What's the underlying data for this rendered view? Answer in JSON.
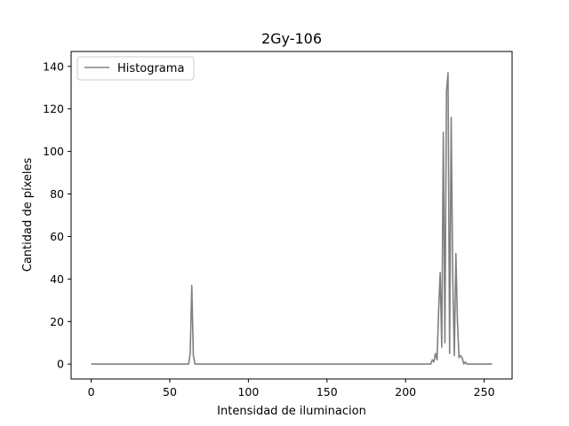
{
  "chart_data": {
    "type": "line",
    "title": "2Gy-106",
    "xlabel": "Intensidad de iluminacion",
    "ylabel": "Cantidad de píxeles",
    "xlim": [
      -12.75,
      267.75
    ],
    "ylim": [
      -7,
      147
    ],
    "xticks": [
      0,
      50,
      100,
      150,
      200,
      250
    ],
    "yticks": [
      0,
      20,
      40,
      60,
      80,
      100,
      120,
      140
    ],
    "grid": false,
    "legend": "top-left",
    "series": [
      {
        "name": "Histograma",
        "color": "#808080",
        "x": [
          0,
          62,
          63,
          64,
          65,
          66,
          215,
          216,
          217,
          218,
          219,
          220,
          221,
          222,
          223,
          224,
          225,
          226,
          227,
          228,
          229,
          230,
          231,
          232,
          233,
          234,
          235,
          236,
          237,
          238,
          239,
          240,
          255
        ],
        "y": [
          0,
          0,
          5,
          37,
          4,
          0,
          0,
          0,
          2,
          1,
          5,
          2,
          25,
          43,
          8,
          109,
          10,
          128,
          137,
          5,
          116,
          40,
          4,
          52,
          20,
          3,
          4,
          3,
          0,
          1,
          0,
          0,
          0
        ]
      }
    ]
  }
}
